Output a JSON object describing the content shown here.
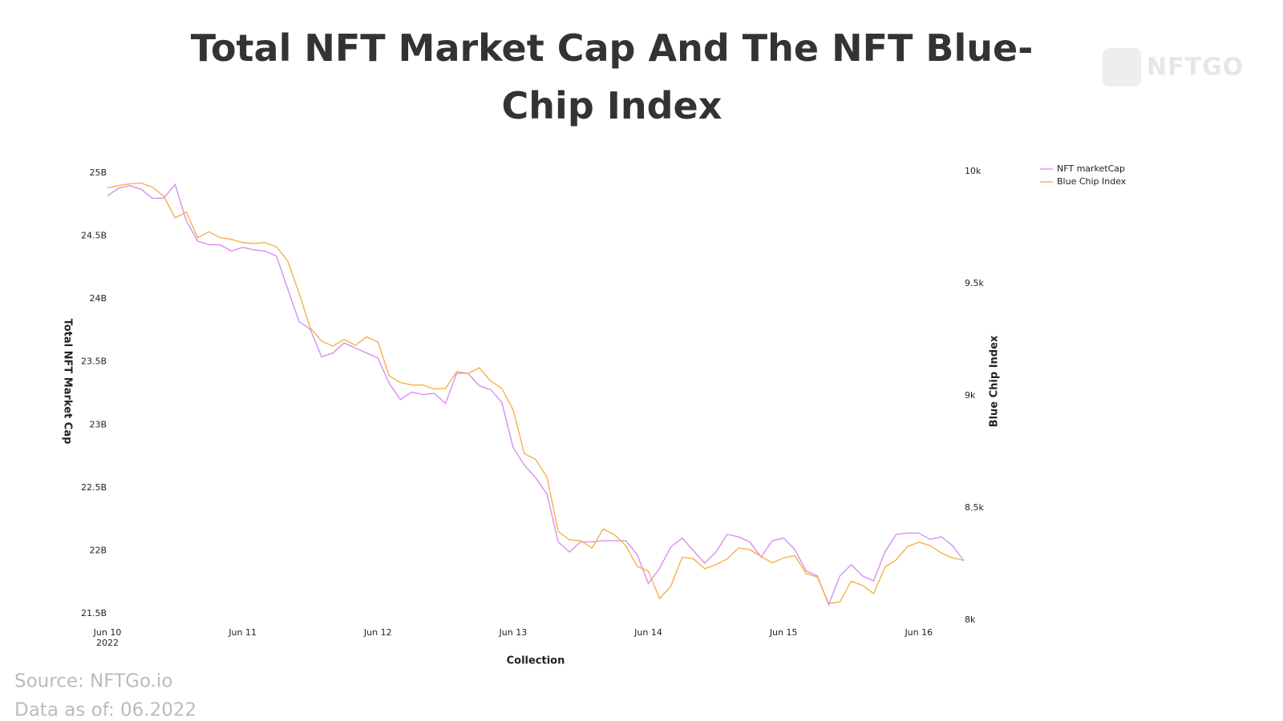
{
  "chart_data": {
    "type": "line",
    "title": "Total NFT Market Cap And The NFT Blue-Chip Index",
    "x_label": "Collection",
    "y_label": "Total NFT Market Cap",
    "y2_label": "Blue Chip Index",
    "x": [
      0,
      2,
      4,
      6,
      8,
      10,
      12,
      14,
      16,
      18,
      20,
      22,
      24,
      26,
      28,
      30,
      32,
      34,
      36,
      38,
      40,
      42,
      44,
      46,
      48,
      50,
      52,
      54,
      56,
      58,
      60,
      62,
      64,
      66,
      68,
      70,
      72,
      74,
      76,
      78,
      80,
      82,
      84,
      86,
      88,
      90,
      92,
      94,
      96,
      98,
      100,
      102,
      104,
      106,
      108,
      110,
      112,
      114,
      116,
      118,
      120,
      122,
      124,
      126,
      128,
      130,
      132,
      134,
      136,
      138,
      140,
      142,
      144,
      146,
      148,
      150,
      152
    ],
    "xlim": [
      0,
      152
    ],
    "xticks": [
      {
        "value": 0,
        "label": "Jun 10"
      },
      {
        "value": 24,
        "label": "Jun 11"
      },
      {
        "value": 48,
        "label": "Jun 12"
      },
      {
        "value": 72,
        "label": "Jun 13"
      },
      {
        "value": 96,
        "label": "Jun 14"
      },
      {
        "value": 120,
        "label": "Jun 15"
      },
      {
        "value": 144,
        "label": "Jun 16"
      }
    ],
    "x_year_label": "2022",
    "ylim": [
      21.5,
      25
    ],
    "yticks": [
      {
        "value": 21.5,
        "label": "21.5B"
      },
      {
        "value": 22,
        "label": "22B"
      },
      {
        "value": 22.5,
        "label": "22.5B"
      },
      {
        "value": 23,
        "label": "23B"
      },
      {
        "value": 23.5,
        "label": "23.5B"
      },
      {
        "value": 24,
        "label": "24B"
      },
      {
        "value": 24.5,
        "label": "24.5B"
      },
      {
        "value": 25,
        "label": "25B"
      }
    ],
    "y2lim": [
      8000,
      10000
    ],
    "y2ticks": [
      {
        "value": 8000,
        "label": "8k"
      },
      {
        "value": 8500,
        "label": "8.5k"
      },
      {
        "value": 9000,
        "label": "9k"
      },
      {
        "value": 9500,
        "label": "9.5k"
      },
      {
        "value": 10000,
        "label": "10k"
      }
    ],
    "grid": false,
    "legend": "top-right",
    "series": [
      {
        "name": "NFT marketCap",
        "color": "#d98ef0",
        "values": [
          24.82,
          24.88,
          24.9,
          24.87,
          24.8,
          24.8,
          24.91,
          24.62,
          24.46,
          24.43,
          24.43,
          24.38,
          24.41,
          24.39,
          24.38,
          24.34,
          24.08,
          23.82,
          23.76,
          23.54,
          23.57,
          23.65,
          23.61,
          23.57,
          23.53,
          23.33,
          23.2,
          23.26,
          23.24,
          23.25,
          23.17,
          23.41,
          23.41,
          23.31,
          23.28,
          23.18,
          22.82,
          22.68,
          22.58,
          22.45,
          22.07,
          21.99,
          22.07,
          22.07,
          22.08,
          22.08,
          22.08,
          21.97,
          21.74,
          21.86,
          22.03,
          22.1,
          22.0,
          21.9,
          21.99,
          22.13,
          22.11,
          22.07,
          21.95,
          22.08,
          22.1,
          22.01,
          21.84,
          21.8,
          21.57,
          21.8,
          21.89,
          21.8,
          21.76,
          21.99,
          22.13,
          22.14,
          22.14,
          22.09,
          22.11,
          22.04,
          21.92
        ]
      },
      {
        "name": "Blue Chip Index",
        "color": "#f5b04c",
        "axis": "y2",
        "values": [
          9926,
          9937,
          9945,
          9948,
          9930,
          9889,
          9793,
          9819,
          9705,
          9731,
          9705,
          9697,
          9683,
          9679,
          9683,
          9664,
          9601,
          9458,
          9303,
          9244,
          9221,
          9251,
          9225,
          9262,
          9240,
          9089,
          9059,
          9048,
          9048,
          9030,
          9033,
          9107,
          9100,
          9125,
          9066,
          9033,
          8937,
          8742,
          8716,
          8638,
          8395,
          8358,
          8354,
          8321,
          8406,
          8380,
          8332,
          8240,
          8218,
          8096,
          8151,
          8280,
          8273,
          8229,
          8247,
          8273,
          8321,
          8314,
          8284,
          8255,
          8277,
          8288,
          8207,
          8192,
          8074,
          8081,
          8173,
          8155,
          8118,
          8236,
          8269,
          8328,
          8347,
          8332,
          8299,
          8277,
          8266
        ]
      }
    ]
  },
  "logo": "NFTGO",
  "source": "Source: NFTGo.io",
  "data_as_of": "Data as of: 06.2022"
}
